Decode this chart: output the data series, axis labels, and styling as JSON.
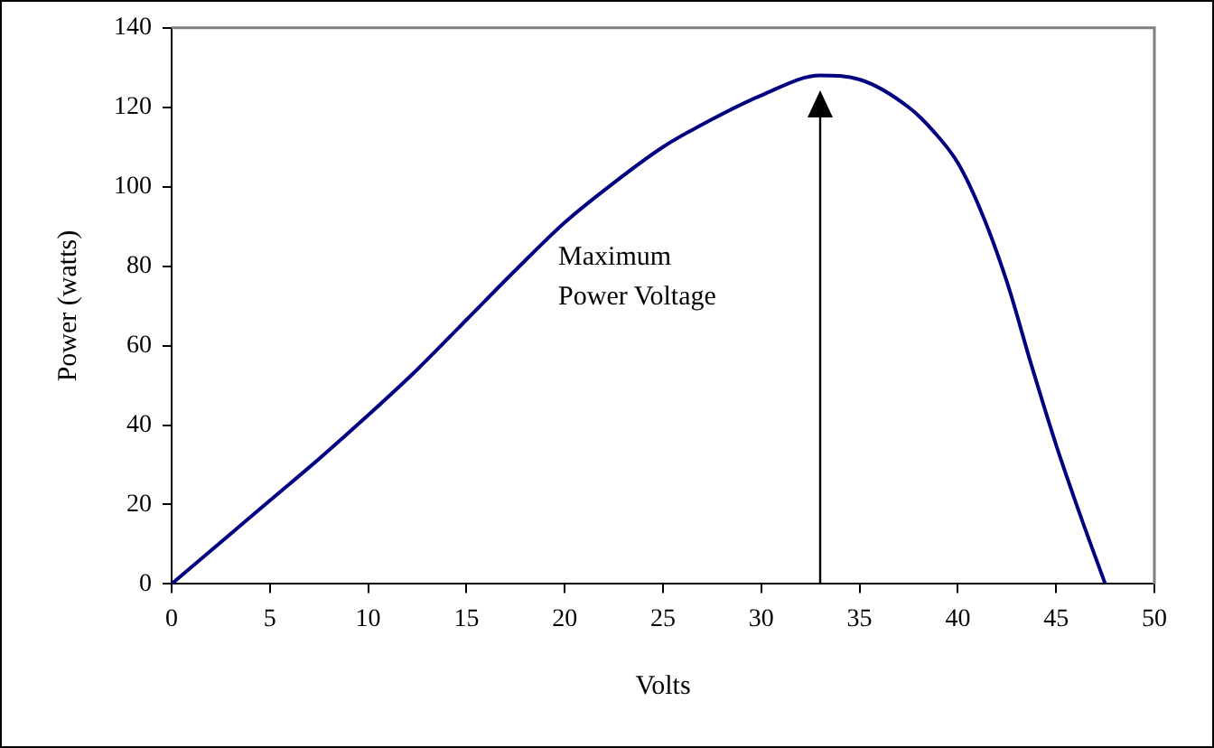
{
  "chart_data": {
    "type": "line",
    "xlabel": "Volts",
    "ylabel": "Power (watts)",
    "x": [
      0,
      2.5,
      5,
      7.5,
      10,
      12.5,
      15,
      17.5,
      20,
      22.5,
      25,
      27.5,
      30,
      33,
      35,
      37.5,
      38.75,
      40,
      41.25,
      42.5,
      43.75,
      45,
      46.25,
      47.5
    ],
    "series": [
      {
        "color": "#000080",
        "values": [
          0,
          10.5,
          21,
          31.5,
          42.5,
          54,
          66.5,
          79,
          91,
          101,
          110,
          117,
          123,
          128,
          127,
          120,
          114,
          106,
          93,
          76,
          55,
          35,
          17,
          0
        ]
      }
    ],
    "xlim": [
      0,
      50
    ],
    "xticks": [
      0,
      5,
      10,
      15,
      20,
      25,
      30,
      35,
      40,
      45,
      50
    ],
    "ylim": [
      0,
      140
    ],
    "yticks": [
      0,
      20,
      40,
      60,
      80,
      100,
      120,
      140
    ],
    "grid": false,
    "legend": false,
    "marker": "none",
    "line_style": "solid",
    "ref_lines": [
      {
        "axis": "x",
        "value": 33,
        "label": "Maximum Power Voltage",
        "color": "#000000"
      }
    ]
  }
}
